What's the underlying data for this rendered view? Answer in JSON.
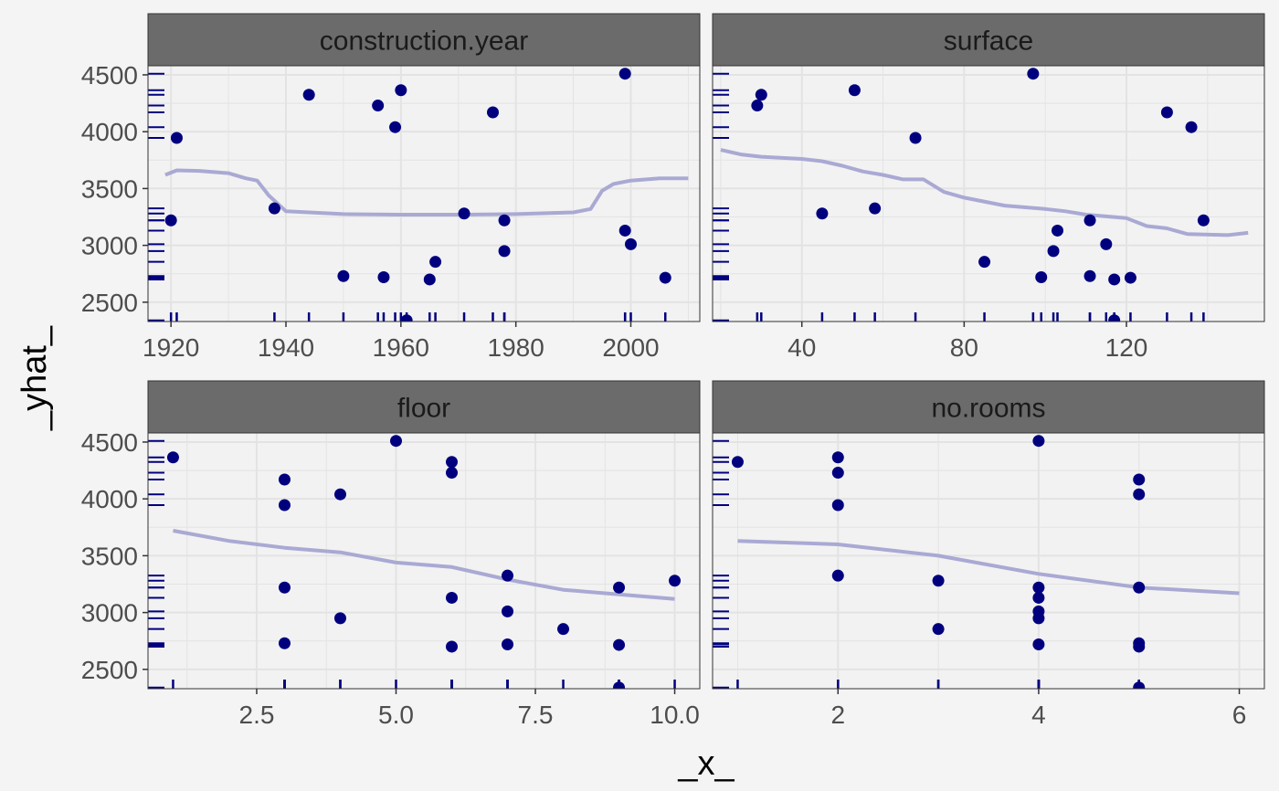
{
  "chart_data": {
    "type": "scatter",
    "xlabel": "_x_",
    "ylabel": "_yhat_",
    "ylim": [
      2330,
      4580
    ],
    "y_ticks": [
      2500,
      3000,
      3500,
      4000,
      4500
    ],
    "grid": true,
    "colors": {
      "points": "#00007f",
      "line": "#a9a9d4",
      "rug": "#00007f",
      "panel_bg": "#f2f2f2",
      "strip_bg": "#6b6b6b",
      "grid": "#e3e3e3"
    },
    "panels": [
      {
        "title": "construction.year",
        "xlim": [
          1916,
          2012
        ],
        "x_ticks": [
          1920,
          1940,
          1960,
          1980,
          2000
        ],
        "x_tick_labels": [
          "1920",
          "1940",
          "1960",
          "1980",
          "2000"
        ],
        "points": [
          [
            1920,
            3220
          ],
          [
            1921,
            3945
          ],
          [
            1938,
            3325
          ],
          [
            1944,
            4325
          ],
          [
            1950,
            2730
          ],
          [
            1956,
            4230
          ],
          [
            1957,
            2720
          ],
          [
            1959,
            4040
          ],
          [
            1960,
            4365
          ],
          [
            1961,
            2340
          ],
          [
            1965,
            2700
          ],
          [
            1966,
            2855
          ],
          [
            1971,
            3280
          ],
          [
            1976,
            4170
          ],
          [
            1978,
            3220
          ],
          [
            1978,
            2950
          ],
          [
            1999,
            4510
          ],
          [
            1999,
            3130
          ],
          [
            2000,
            3010
          ],
          [
            2006,
            2715
          ]
        ],
        "line": [
          [
            1919,
            3620
          ],
          [
            1921,
            3660
          ],
          [
            1925,
            3655
          ],
          [
            1930,
            3635
          ],
          [
            1933,
            3590
          ],
          [
            1935,
            3570
          ],
          [
            1937,
            3440
          ],
          [
            1940,
            3300
          ],
          [
            1950,
            3275
          ],
          [
            1960,
            3270
          ],
          [
            1970,
            3270
          ],
          [
            1980,
            3275
          ],
          [
            1990,
            3290
          ],
          [
            1993,
            3320
          ],
          [
            1995,
            3480
          ],
          [
            1997,
            3540
          ],
          [
            2000,
            3570
          ],
          [
            2005,
            3590
          ],
          [
            2010,
            3590
          ]
        ]
      },
      {
        "title": "surface",
        "xlim": [
          18,
          154
        ],
        "x_ticks": [
          40,
          80,
          120
        ],
        "x_tick_labels": [
          "40",
          "80",
          "120"
        ],
        "points": [
          [
            29,
            4230
          ],
          [
            30,
            4325
          ],
          [
            45,
            3280
          ],
          [
            53,
            4365
          ],
          [
            58,
            3325
          ],
          [
            68,
            3945
          ],
          [
            85,
            2855
          ],
          [
            97,
            4510
          ],
          [
            99,
            2720
          ],
          [
            102,
            2950
          ],
          [
            103,
            3130
          ],
          [
            111,
            2730
          ],
          [
            111,
            3220
          ],
          [
            115,
            3010
          ],
          [
            117,
            2700
          ],
          [
            117,
            2340
          ],
          [
            121,
            2715
          ],
          [
            130,
            4170
          ],
          [
            136,
            4040
          ],
          [
            139,
            3220
          ]
        ],
        "line": [
          [
            20,
            3840
          ],
          [
            25,
            3800
          ],
          [
            30,
            3780
          ],
          [
            40,
            3760
          ],
          [
            45,
            3740
          ],
          [
            50,
            3700
          ],
          [
            55,
            3650
          ],
          [
            60,
            3620
          ],
          [
            65,
            3580
          ],
          [
            70,
            3580
          ],
          [
            75,
            3470
          ],
          [
            80,
            3420
          ],
          [
            90,
            3350
          ],
          [
            100,
            3320
          ],
          [
            105,
            3300
          ],
          [
            110,
            3270
          ],
          [
            120,
            3240
          ],
          [
            125,
            3170
          ],
          [
            130,
            3150
          ],
          [
            135,
            3100
          ],
          [
            145,
            3090
          ],
          [
            150,
            3110
          ]
        ]
      },
      {
        "title": "floor",
        "xlim": [
          0.55,
          10.45
        ],
        "x_ticks": [
          2.5,
          5.0,
          7.5,
          10.0
        ],
        "x_tick_labels": [
          "2.5",
          "5.0",
          "7.5",
          "10.0"
        ],
        "points": [
          [
            1,
            4365
          ],
          [
            3,
            4170
          ],
          [
            3,
            3945
          ],
          [
            3,
            3220
          ],
          [
            3,
            2730
          ],
          [
            4,
            4040
          ],
          [
            4,
            2950
          ],
          [
            5,
            4510
          ],
          [
            6,
            4325
          ],
          [
            6,
            4230
          ],
          [
            6,
            3130
          ],
          [
            6,
            2700
          ],
          [
            7,
            3325
          ],
          [
            7,
            3010
          ],
          [
            7,
            2720
          ],
          [
            8,
            2855
          ],
          [
            9,
            3220
          ],
          [
            9,
            2715
          ],
          [
            9,
            2340
          ],
          [
            10,
            3280
          ]
        ],
        "line": [
          [
            1,
            3720
          ],
          [
            2,
            3630
          ],
          [
            3,
            3570
          ],
          [
            4,
            3530
          ],
          [
            5,
            3440
          ],
          [
            6,
            3400
          ],
          [
            7,
            3290
          ],
          [
            8,
            3200
          ],
          [
            9,
            3160
          ],
          [
            10,
            3120
          ]
        ]
      },
      {
        "title": "no.rooms",
        "xlim": [
          0.75,
          6.25
        ],
        "x_ticks": [
          2,
          4,
          6
        ],
        "x_tick_labels": [
          "2",
          "4",
          "6"
        ],
        "points": [
          [
            1,
            4325
          ],
          [
            2,
            4365
          ],
          [
            2,
            4230
          ],
          [
            2,
            3945
          ],
          [
            2,
            3325
          ],
          [
            3,
            3280
          ],
          [
            3,
            2855
          ],
          [
            4,
            4510
          ],
          [
            4,
            3220
          ],
          [
            4,
            3130
          ],
          [
            4,
            3010
          ],
          [
            4,
            2950
          ],
          [
            4,
            2720
          ],
          [
            5,
            4170
          ],
          [
            5,
            4040
          ],
          [
            5,
            3220
          ],
          [
            5,
            2730
          ],
          [
            5,
            2700
          ],
          [
            5,
            2340
          ]
        ],
        "line": [
          [
            1,
            3630
          ],
          [
            2,
            3600
          ],
          [
            3,
            3500
          ],
          [
            4,
            3340
          ],
          [
            5,
            3220
          ],
          [
            6,
            3170
          ]
        ]
      }
    ]
  }
}
